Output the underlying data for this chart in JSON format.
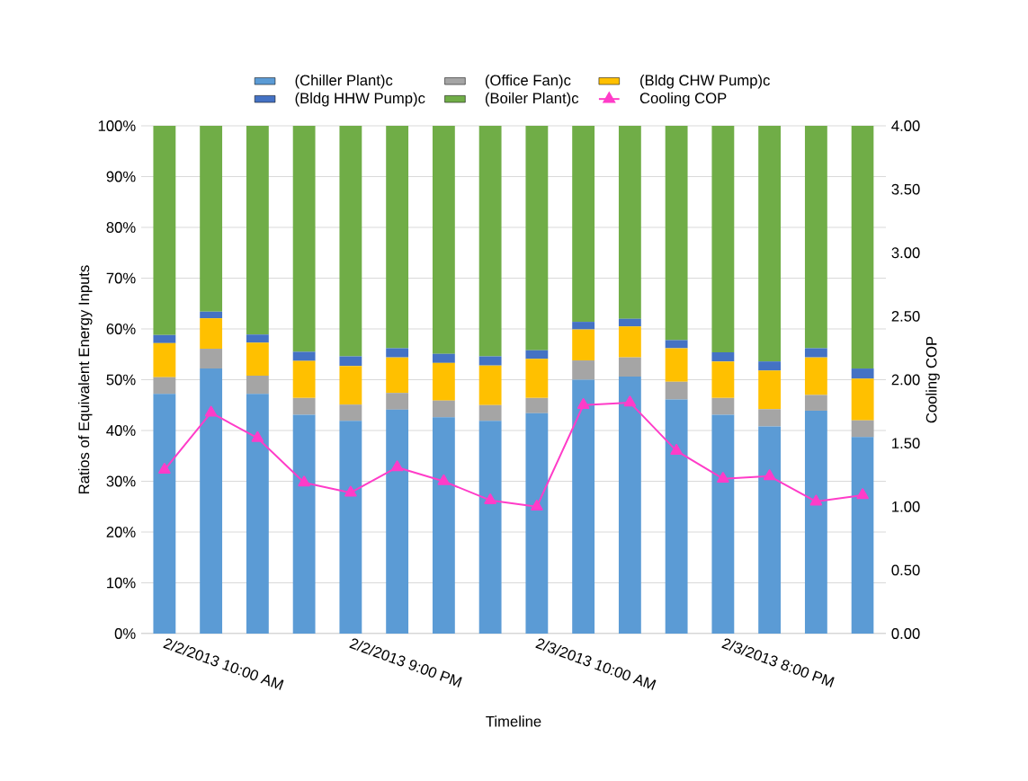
{
  "chart_data": {
    "type": "bar",
    "stacked": true,
    "xlabel": "Timeline",
    "ylabel": "Ratios of Equivalent Energy Inputs",
    "y2label": "Cooling COP",
    "categories": [
      "2/2/2013 10:00 AM",
      null,
      null,
      null,
      "2/2/2013 9:00 PM",
      null,
      null,
      null,
      "2/3/2013 10:00 AM",
      null,
      null,
      null,
      "2/3/2013 8:00 PM",
      null,
      null,
      null
    ],
    "series": [
      {
        "name": "(Chiller Plant)c",
        "color": "#5b9bd5",
        "values": [
          47.2,
          52.2,
          47.2,
          43.1,
          41.9,
          44.1,
          42.6,
          41.9,
          43.4,
          50.0,
          50.6,
          46.1,
          43.1,
          40.8,
          43.9,
          38.7
        ]
      },
      {
        "name": "(Office Fan)c",
        "color": "#a5a5a5",
        "values": [
          3.3,
          3.9,
          3.6,
          3.3,
          3.2,
          3.3,
          3.3,
          3.1,
          3.0,
          3.8,
          3.8,
          3.5,
          3.3,
          3.4,
          3.1,
          3.3
        ]
      },
      {
        "name": "(Bldg CHW Pump)c",
        "color": "#ffc000",
        "values": [
          6.7,
          6.0,
          6.5,
          7.3,
          7.6,
          7.0,
          7.4,
          7.8,
          7.7,
          6.1,
          6.1,
          6.6,
          7.2,
          7.6,
          7.4,
          8.2
        ]
      },
      {
        "name": "(Bldg HHW Pump)c",
        "color": "#4472c4",
        "values": [
          1.6,
          1.3,
          1.6,
          1.8,
          1.9,
          1.8,
          1.8,
          1.8,
          1.7,
          1.5,
          1.5,
          1.6,
          1.8,
          1.8,
          1.8,
          2.0
        ]
      },
      {
        "name": "(Boiler Plant)c",
        "color": "#70ad47",
        "values": [
          41.2,
          36.6,
          41.1,
          44.5,
          45.4,
          43.8,
          44.9,
          45.4,
          44.2,
          38.6,
          38.0,
          42.2,
          44.6,
          46.4,
          43.8,
          47.8
        ]
      },
      {
        "name": "Cooling COP",
        "type": "line",
        "axis": "y2",
        "marker": "triangle",
        "color": "#ff3cc8",
        "values": [
          1.29,
          1.74,
          1.54,
          1.19,
          1.11,
          1.31,
          1.2,
          1.05,
          1.0,
          1.8,
          1.82,
          1.44,
          1.22,
          1.24,
          1.04,
          1.09
        ]
      }
    ],
    "ylim": [
      0,
      100
    ],
    "yticks": [
      {
        "value": 0,
        "label": "0%"
      },
      {
        "value": 10,
        "label": "10%"
      },
      {
        "value": 20,
        "label": "20%"
      },
      {
        "value": 30,
        "label": "30%"
      },
      {
        "value": 40,
        "label": "40%"
      },
      {
        "value": 50,
        "label": "50%"
      },
      {
        "value": 60,
        "label": "60%"
      },
      {
        "value": 70,
        "label": "70%"
      },
      {
        "value": 80,
        "label": "80%"
      },
      {
        "value": 90,
        "label": "90%"
      },
      {
        "value": 100,
        "label": "100%"
      }
    ],
    "y2lim": [
      0,
      4
    ],
    "y2ticks": [
      {
        "value": 0,
        "label": "0.00"
      },
      {
        "value": 0.5,
        "label": "0.50"
      },
      {
        "value": 1,
        "label": "1.00"
      },
      {
        "value": 1.5,
        "label": "1.50"
      },
      {
        "value": 2,
        "label": "2.00"
      },
      {
        "value": 2.5,
        "label": "2.50"
      },
      {
        "value": 3,
        "label": "3.00"
      },
      {
        "value": 3.5,
        "label": "3.50"
      },
      {
        "value": 4,
        "label": "4.00"
      }
    ],
    "grid": "y",
    "legend": "top"
  }
}
